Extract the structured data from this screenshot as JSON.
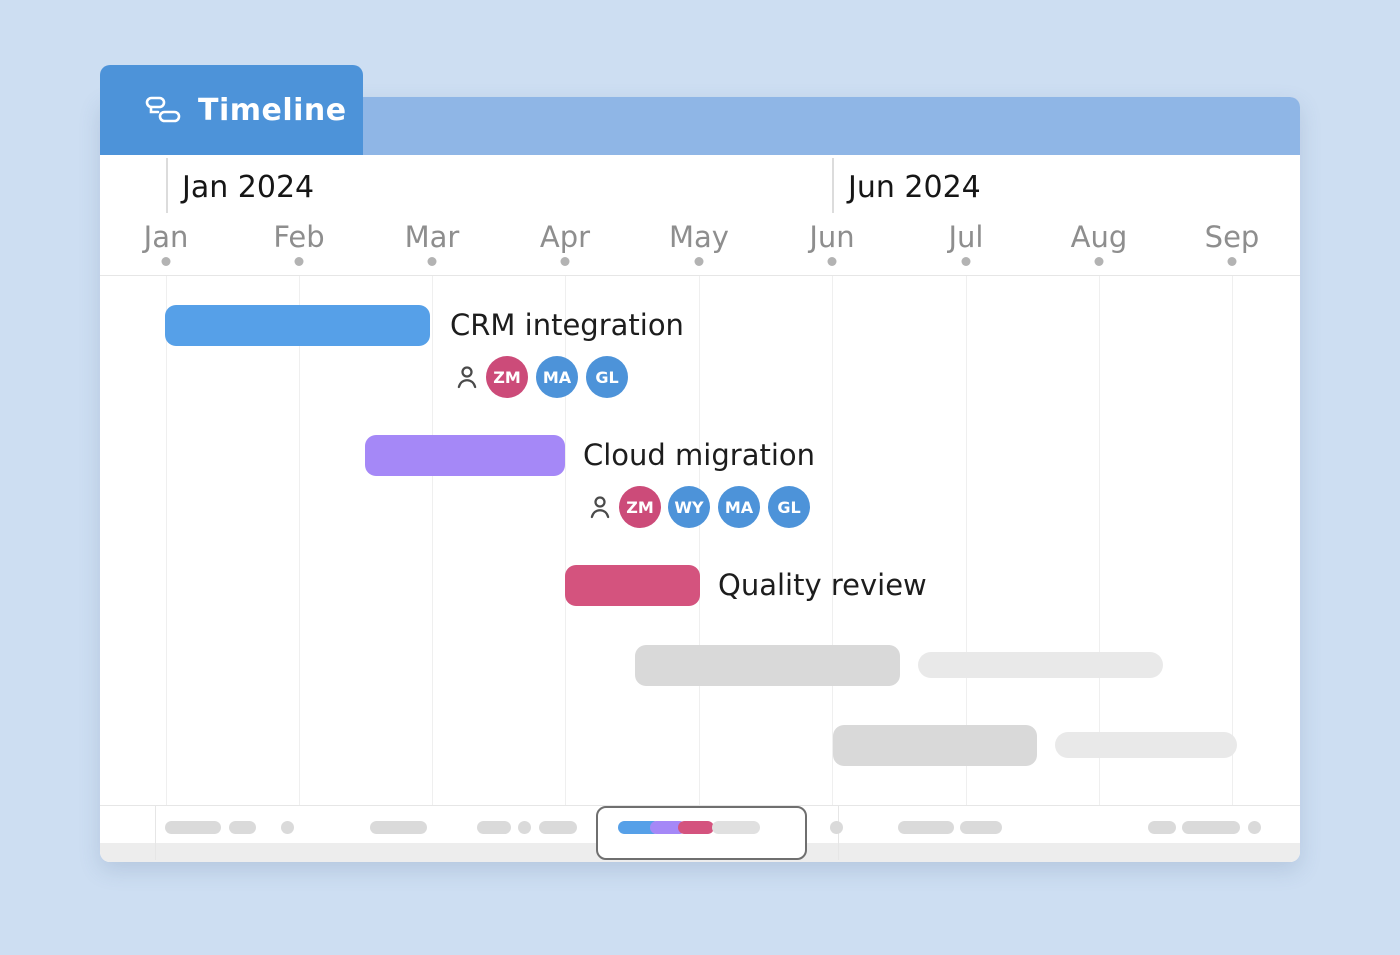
{
  "app": {
    "tab": {
      "label": "Timeline",
      "icon": "timeline-bars-icon"
    }
  },
  "header": {
    "periods": [
      {
        "label": "Jan 2024"
      },
      {
        "label": "Jun 2024"
      }
    ],
    "months": [
      "Jan",
      "Feb",
      "Mar",
      "Apr",
      "May",
      "Jun",
      "Jul",
      "Aug",
      "Sep"
    ]
  },
  "tasks": [
    {
      "name": "CRM integration",
      "bar_color": "#56a0e8",
      "start_month": "Jan",
      "end_month": "Mar",
      "assignees": [
        {
          "initials": "ZM",
          "color": "#cc4b79"
        },
        {
          "initials": "MA",
          "color": "#4d93d9"
        },
        {
          "initials": "GL",
          "color": "#4d93d9"
        }
      ]
    },
    {
      "name": "Cloud migration",
      "bar_color": "#a588f7",
      "start_month": "mid-Feb",
      "end_month": "Apr",
      "assignees": [
        {
          "initials": "ZM",
          "color": "#cc4b79"
        },
        {
          "initials": "WY",
          "color": "#4d93d9"
        },
        {
          "initials": "MA",
          "color": "#4d93d9"
        },
        {
          "initials": "GL",
          "color": "#4d93d9"
        }
      ]
    },
    {
      "name": "Quality review",
      "bar_color": "#d4537e",
      "start_month": "Apr",
      "end_month": "May",
      "assignees": []
    }
  ],
  "placeholders": {
    "bar_color_dark": "#d9d9d9",
    "bar_color_light": "#e9e9e9"
  },
  "colors": {
    "page_background": "#cddef2",
    "tab_blue": "#4d93d9",
    "band_blue": "#8fb6e6",
    "minimap_border": "#6f6f6f"
  }
}
